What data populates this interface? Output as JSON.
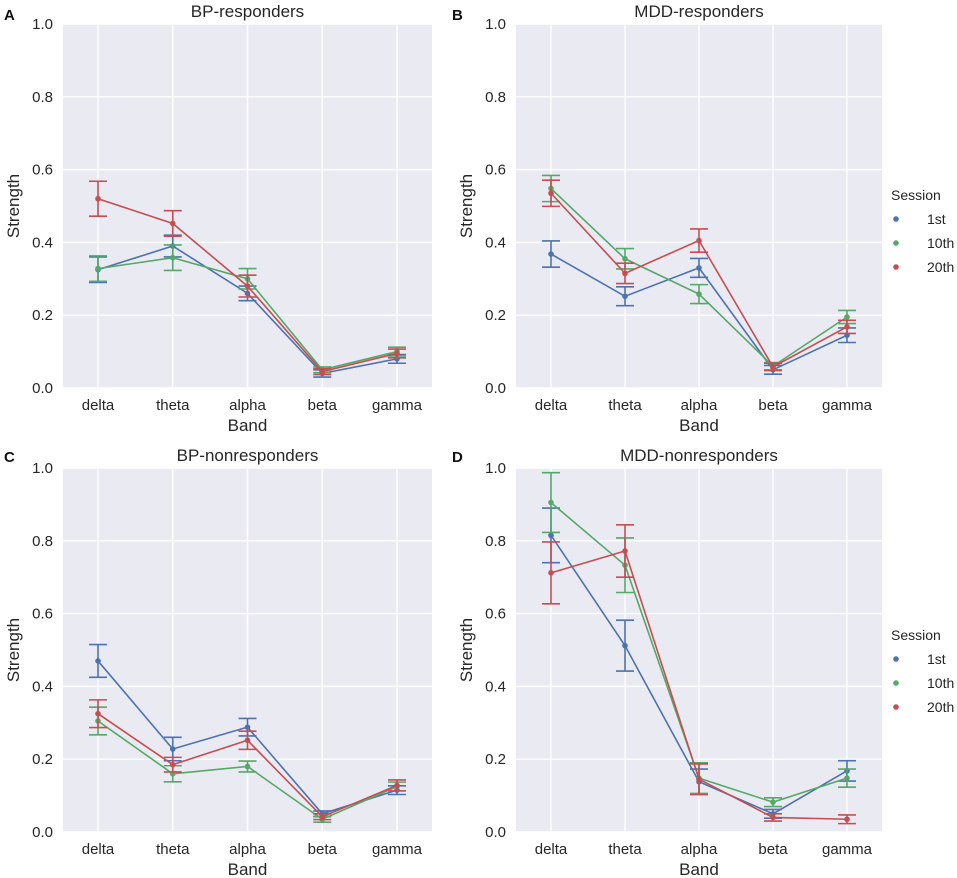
{
  "chart_data": [
    {
      "type": "line",
      "panel_letter": "A",
      "title": "BP-responders",
      "xlabel": "Band",
      "ylabel": "Strength",
      "categories": [
        "delta",
        "theta",
        "alpha",
        "beta",
        "gamma"
      ],
      "ylim": [
        0.0,
        1.0
      ],
      "yticks": [
        "0.0",
        "0.2",
        "0.4",
        "0.6",
        "0.8",
        "1.0"
      ],
      "grid": true,
      "legend": null,
      "series": [
        {
          "name": "1st",
          "color": "#4c72b0",
          "values": [
            0.325,
            0.39,
            0.26,
            0.04,
            0.08
          ],
          "err": [
            0.035,
            0.03,
            0.02,
            0.01,
            0.012
          ]
        },
        {
          "name": "10th",
          "color": "#55a868",
          "values": [
            0.328,
            0.358,
            0.3,
            0.05,
            0.1
          ],
          "err": [
            0.035,
            0.035,
            0.028,
            0.008,
            0.012
          ]
        },
        {
          "name": "20th",
          "color": "#c44e52",
          "values": [
            0.52,
            0.452,
            0.28,
            0.045,
            0.095
          ],
          "err": [
            0.048,
            0.035,
            0.03,
            0.008,
            0.012
          ]
        }
      ]
    },
    {
      "type": "line",
      "panel_letter": "B",
      "title": "MDD-responders",
      "xlabel": "Band",
      "ylabel": "Strength",
      "categories": [
        "delta",
        "theta",
        "alpha",
        "beta",
        "gamma"
      ],
      "ylim": [
        0.0,
        1.0
      ],
      "yticks": [
        "0.0",
        "0.2",
        "0.4",
        "0.6",
        "0.8",
        "1.0"
      ],
      "grid": true,
      "legend": {
        "title": "Session",
        "entries": [
          "1st",
          "10th",
          "20th"
        ]
      },
      "series": [
        {
          "name": "1st",
          "color": "#4c72b0",
          "values": [
            0.368,
            0.252,
            0.33,
            0.05,
            0.145
          ],
          "err": [
            0.036,
            0.026,
            0.026,
            0.012,
            0.02
          ]
        },
        {
          "name": "10th",
          "color": "#55a868",
          "values": [
            0.548,
            0.355,
            0.258,
            0.06,
            0.195
          ],
          "err": [
            0.036,
            0.028,
            0.026,
            0.01,
            0.018
          ]
        },
        {
          "name": "20th",
          "color": "#c44e52",
          "values": [
            0.535,
            0.315,
            0.405,
            0.058,
            0.168
          ],
          "err": [
            0.036,
            0.028,
            0.032,
            0.01,
            0.018
          ]
        }
      ]
    },
    {
      "type": "line",
      "panel_letter": "C",
      "title": "BP-nonresponders",
      "xlabel": "Band",
      "ylabel": "Strength",
      "categories": [
        "delta",
        "theta",
        "alpha",
        "beta",
        "gamma"
      ],
      "ylim": [
        0.0,
        1.0
      ],
      "yticks": [
        "0.0",
        "0.2",
        "0.4",
        "0.6",
        "0.8",
        "1.0"
      ],
      "grid": true,
      "legend": null,
      "series": [
        {
          "name": "1st",
          "color": "#4c72b0",
          "values": [
            0.47,
            0.228,
            0.288,
            0.05,
            0.115
          ],
          "err": [
            0.045,
            0.032,
            0.024,
            0.008,
            0.012
          ]
        },
        {
          "name": "10th",
          "color": "#55a868",
          "values": [
            0.305,
            0.16,
            0.18,
            0.035,
            0.125
          ],
          "err": [
            0.038,
            0.022,
            0.015,
            0.008,
            0.012
          ]
        },
        {
          "name": "20th",
          "color": "#c44e52",
          "values": [
            0.325,
            0.185,
            0.252,
            0.042,
            0.128
          ],
          "err": [
            0.038,
            0.02,
            0.025,
            0.008,
            0.015
          ]
        }
      ]
    },
    {
      "type": "line",
      "panel_letter": "D",
      "title": "MDD-nonresponders",
      "xlabel": "Band",
      "ylabel": "Strength",
      "categories": [
        "delta",
        "theta",
        "alpha",
        "beta",
        "gamma"
      ],
      "ylim": [
        0.0,
        1.0
      ],
      "yticks": [
        "0.0",
        "0.2",
        "0.4",
        "0.6",
        "0.8",
        "1.0"
      ],
      "grid": true,
      "legend": {
        "title": "Session",
        "entries": [
          "1st",
          "10th",
          "20th"
        ]
      },
      "series": [
        {
          "name": "1st",
          "color": "#4c72b0",
          "values": [
            0.815,
            0.512,
            0.138,
            0.05,
            0.168
          ],
          "err": [
            0.075,
            0.07,
            0.035,
            0.012,
            0.028
          ]
        },
        {
          "name": "10th",
          "color": "#55a868",
          "values": [
            0.905,
            0.733,
            0.148,
            0.082,
            0.148
          ],
          "err": [
            0.082,
            0.075,
            0.042,
            0.012,
            0.025
          ]
        },
        {
          "name": "20th",
          "color": "#c44e52",
          "values": [
            0.712,
            0.772,
            0.145,
            0.04,
            0.035
          ],
          "err": [
            0.085,
            0.072,
            0.042,
            0.01,
            0.012
          ]
        }
      ]
    }
  ]
}
